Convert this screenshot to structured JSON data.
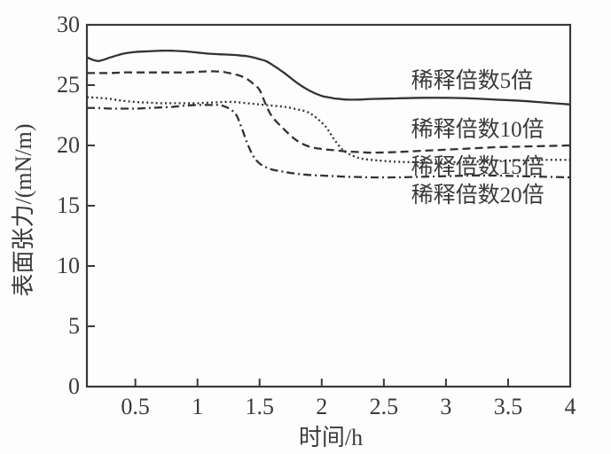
{
  "figure": {
    "kind": "scientific line chart",
    "background": "#fdfdfd",
    "frame_color": "#3a3a3a",
    "line_color": "#333333"
  },
  "chart_data": {
    "type": "line",
    "title": "",
    "xlabel": "时间/h",
    "ylabel": "表面张力/(mN/m)",
    "xlim": [
      0.11,
      4
    ],
    "ylim": [
      0,
      30
    ],
    "x_ticks": [
      0.5,
      1,
      1.5,
      2,
      2.5,
      3,
      3.5,
      4
    ],
    "x_tick_labels": [
      "0.5",
      "1",
      "1.5",
      "2",
      "2.5",
      "3",
      "3.5",
      "4"
    ],
    "y_ticks": [
      0,
      5,
      10,
      15,
      20,
      25,
      30
    ],
    "y_tick_labels": [
      "0",
      "5",
      "10",
      "15",
      "20",
      "25",
      "30"
    ],
    "grid": false,
    "legend_position": "inline-annotations",
    "x": [
      0.11,
      0.2,
      0.3,
      0.4,
      0.5,
      0.6,
      0.7,
      0.8,
      0.9,
      1.0,
      1.1,
      1.2,
      1.3,
      1.35,
      1.4,
      1.45,
      1.5,
      1.55,
      1.6,
      1.7,
      1.8,
      1.9,
      2.0,
      2.05,
      2.1,
      2.15,
      2.2,
      2.3,
      2.4,
      2.6,
      2.8,
      3.0,
      3.2,
      3.4,
      3.6,
      3.8,
      4.0
    ],
    "series": [
      {
        "name": "稀释倍数5倍",
        "style": "solid",
        "values": [
          27.3,
          27.0,
          27.3,
          27.6,
          27.75,
          27.8,
          27.85,
          27.85,
          27.8,
          27.7,
          27.6,
          27.55,
          27.5,
          27.45,
          27.4,
          27.3,
          27.15,
          27.0,
          26.7,
          26.0,
          25.2,
          24.55,
          24.1,
          24.0,
          23.9,
          23.85,
          23.8,
          23.8,
          23.85,
          23.9,
          23.95,
          23.95,
          23.9,
          23.8,
          23.7,
          23.55,
          23.4
        ]
      },
      {
        "name": "稀释倍数10倍",
        "style": "dashed",
        "values": [
          26.0,
          26.0,
          26.0,
          26.05,
          26.05,
          26.05,
          26.05,
          26.05,
          26.05,
          26.1,
          26.15,
          26.1,
          25.9,
          25.75,
          25.5,
          25.1,
          24.6,
          23.4,
          22.4,
          21.3,
          20.4,
          19.9,
          19.7,
          19.65,
          19.6,
          19.55,
          19.5,
          19.45,
          19.4,
          19.45,
          19.55,
          19.65,
          19.75,
          19.85,
          19.9,
          19.95,
          20.0
        ]
      },
      {
        "name": "稀释倍数15倍",
        "style": "dotted",
        "values": [
          24.0,
          23.95,
          23.85,
          23.7,
          23.6,
          23.55,
          23.5,
          23.5,
          23.5,
          23.5,
          23.55,
          23.6,
          23.6,
          23.55,
          23.5,
          23.45,
          23.4,
          23.35,
          23.3,
          23.2,
          23.0,
          22.7,
          21.9,
          21.3,
          20.5,
          19.85,
          19.4,
          18.95,
          18.8,
          18.65,
          18.6,
          18.6,
          18.65,
          18.7,
          18.75,
          18.8,
          18.8
        ]
      },
      {
        "name": "稀释倍数20倍",
        "style": "dashdot",
        "values": [
          23.1,
          23.1,
          23.05,
          23.05,
          23.05,
          23.1,
          23.15,
          23.2,
          23.3,
          23.35,
          23.35,
          23.3,
          22.7,
          21.6,
          20.2,
          19.1,
          18.5,
          18.2,
          18.0,
          17.8,
          17.65,
          17.55,
          17.5,
          17.48,
          17.45,
          17.43,
          17.4,
          17.38,
          17.35,
          17.35,
          17.4,
          17.45,
          17.5,
          17.5,
          17.45,
          17.4,
          17.35
        ]
      }
    ],
    "annotations": [
      {
        "text": "稀释倍数5倍",
        "x": 2.72,
        "y": 25.4
      },
      {
        "text": "稀释倍数10倍",
        "x": 2.72,
        "y": 21.3
      },
      {
        "text": "稀释倍数15倍",
        "x": 2.72,
        "y": 18.2
      },
      {
        "text": "稀释倍数20倍",
        "x": 2.72,
        "y": 15.9
      }
    ]
  }
}
